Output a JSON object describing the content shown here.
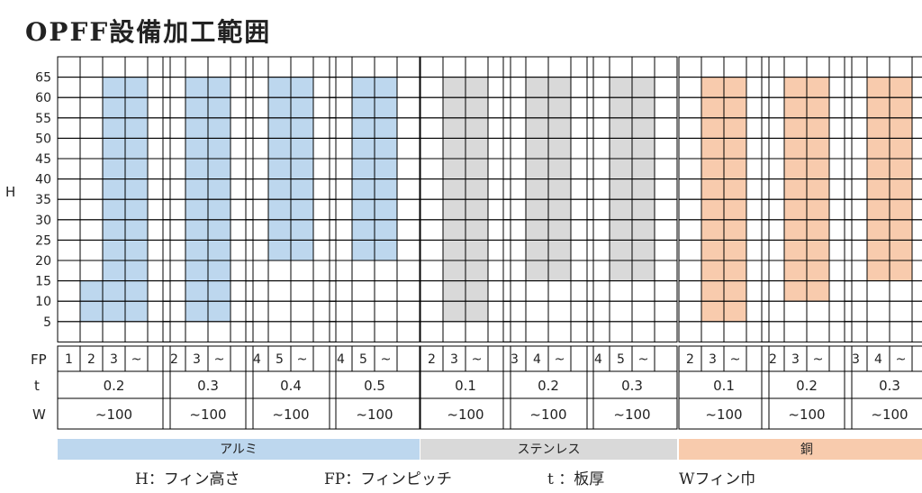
{
  "title": "OPFF設備加工範囲",
  "row_labels": [
    "65",
    "60",
    "55",
    "50",
    "45",
    "40",
    "35",
    "30",
    "25",
    "20",
    "15",
    "10",
    "5"
  ],
  "axis_label": "H",
  "fp_label": "FP",
  "t_label": "t",
  "w_label": "W",
  "colors": {
    "alum": "#bdd7ee",
    "stainless": "#d9d9d9",
    "copper": "#f8cbad"
  },
  "blocks": [
    {
      "material": "alum",
      "fp": [
        "1",
        "2",
        "3",
        "~"
      ],
      "t": "0.2",
      "w": "~100",
      "fill": [
        {
          "col": 1,
          "from": 5,
          "to": 15
        },
        {
          "col": 2,
          "from": 5,
          "to": 65
        },
        {
          "col": 3,
          "from": 5,
          "to": 65
        }
      ]
    },
    {
      "material": "alum",
      "fp": [
        "2",
        "3",
        "~"
      ],
      "t": "0.3",
      "w": "~100",
      "fill": [
        {
          "col": 1,
          "from": 5,
          "to": 65
        },
        {
          "col": 2,
          "from": 5,
          "to": 65
        }
      ]
    },
    {
      "material": "alum",
      "fp": [
        "4",
        "5",
        "~"
      ],
      "t": "0.4",
      "w": "~100",
      "fill": [
        {
          "col": 1,
          "from": 20,
          "to": 65
        },
        {
          "col": 2,
          "from": 20,
          "to": 65
        }
      ]
    },
    {
      "material": "alum",
      "fp": [
        "4",
        "5",
        "~"
      ],
      "t": "0.5",
      "w": "~100",
      "fill": [
        {
          "col": 1,
          "from": 20,
          "to": 65
        },
        {
          "col": 2,
          "from": 20,
          "to": 65
        }
      ]
    },
    {
      "material": "stainless",
      "fp": [
        "2",
        "3",
        "~"
      ],
      "t": "0.1",
      "w": "~100",
      "fill": [
        {
          "col": 1,
          "from": 5,
          "to": 65
        },
        {
          "col": 2,
          "from": 5,
          "to": 65
        }
      ]
    },
    {
      "material": "stainless",
      "fp": [
        "3",
        "4",
        "~"
      ],
      "t": "0.2",
      "w": "~100",
      "fill": [
        {
          "col": 1,
          "from": 15,
          "to": 65
        },
        {
          "col": 2,
          "from": 15,
          "to": 65
        }
      ]
    },
    {
      "material": "stainless",
      "fp": [
        "4",
        "5",
        "~"
      ],
      "t": "0.3",
      "w": "~100",
      "fill": [
        {
          "col": 1,
          "from": 15,
          "to": 65
        },
        {
          "col": 2,
          "from": 15,
          "to": 65
        }
      ]
    },
    {
      "material": "copper",
      "fp": [
        "2",
        "3",
        "~"
      ],
      "t": "0.1",
      "w": "~100",
      "fill": [
        {
          "col": 1,
          "from": 5,
          "to": 65
        },
        {
          "col": 2,
          "from": 5,
          "to": 65
        }
      ]
    },
    {
      "material": "copper",
      "fp": [
        "2",
        "3",
        "~"
      ],
      "t": "0.2",
      "w": "~100",
      "fill": [
        {
          "col": 1,
          "from": 10,
          "to": 65
        },
        {
          "col": 2,
          "from": 10,
          "to": 65
        }
      ]
    },
    {
      "material": "copper",
      "fp": [
        "3",
        "4",
        "~"
      ],
      "t": "0.3",
      "w": "~100",
      "fill": [
        {
          "col": 1,
          "from": 15,
          "to": 65
        },
        {
          "col": 2,
          "from": 15,
          "to": 65
        }
      ]
    }
  ],
  "materials": [
    {
      "key": "alum",
      "label": "アルミ",
      "first_block": 0,
      "last_block": 3
    },
    {
      "key": "stainless",
      "label": "ステンレス",
      "first_block": 4,
      "last_block": 6
    },
    {
      "key": "copper",
      "label": "銅",
      "first_block": 7,
      "last_block": 9
    }
  ],
  "footer": {
    "h": "H：フィン高さ",
    "fp": "FP：フィンピッチ",
    "t": "t ：板厚",
    "w": "Wフィン巾"
  }
}
